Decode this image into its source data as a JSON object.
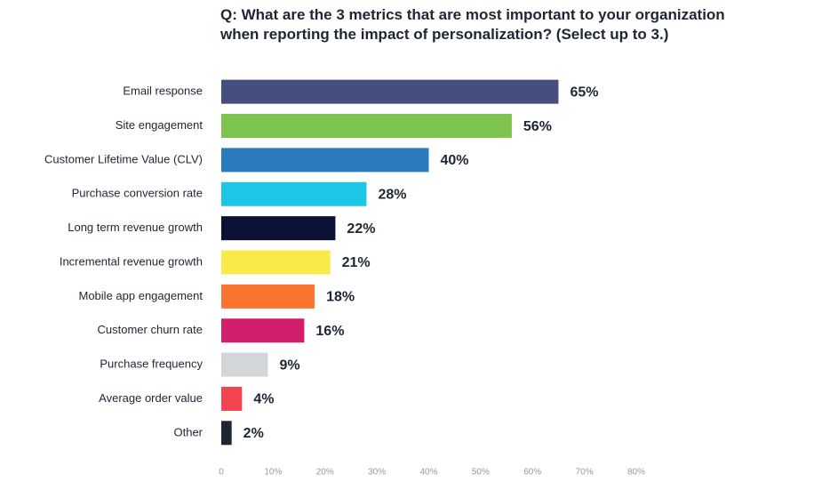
{
  "chart_data": {
    "type": "hbar",
    "title": "Q: What are the 3 metrics that are most important to your organization when reporting the impact of personalization? (Select up to 3.)",
    "categories": [
      "Email response",
      "Site engagement",
      "Customer Lifetime Value (CLV)",
      "Purchase conversion rate",
      "Long term revenue growth",
      "Incremental revenue growth",
      "Mobile app engagement",
      "Customer churn rate",
      "Purchase frequency",
      "Average order value",
      "Other"
    ],
    "values": [
      65,
      56,
      40,
      28,
      22,
      21,
      18,
      16,
      9,
      4,
      2
    ],
    "value_labels": [
      "65%",
      "56%",
      "40%",
      "28%",
      "22%",
      "21%",
      "18%",
      "16%",
      "9%",
      "4%",
      "2%"
    ],
    "colors": [
      "#454f7e",
      "#7dc44f",
      "#2c7bbf",
      "#1ec6e6",
      "#0b1236",
      "#f9ea4a",
      "#fa7330",
      "#d21f6b",
      "#d3d6d9",
      "#f4444f",
      "#1d2733"
    ],
    "xlim": [
      0,
      80
    ],
    "xticks": [
      0,
      {
        "value": 10,
        "label": "10%"
      },
      {
        "value": 20,
        "label": "20%"
      },
      {
        "value": 30,
        "label": "30%"
      },
      {
        "value": 40,
        "label": "40%"
      },
      {
        "value": 50,
        "label": "50%"
      },
      {
        "value": 60,
        "label": "60%"
      },
      {
        "value": 70,
        "label": "70%"
      },
      {
        "value": 80,
        "label": "80%"
      }
    ],
    "grid": false
  }
}
